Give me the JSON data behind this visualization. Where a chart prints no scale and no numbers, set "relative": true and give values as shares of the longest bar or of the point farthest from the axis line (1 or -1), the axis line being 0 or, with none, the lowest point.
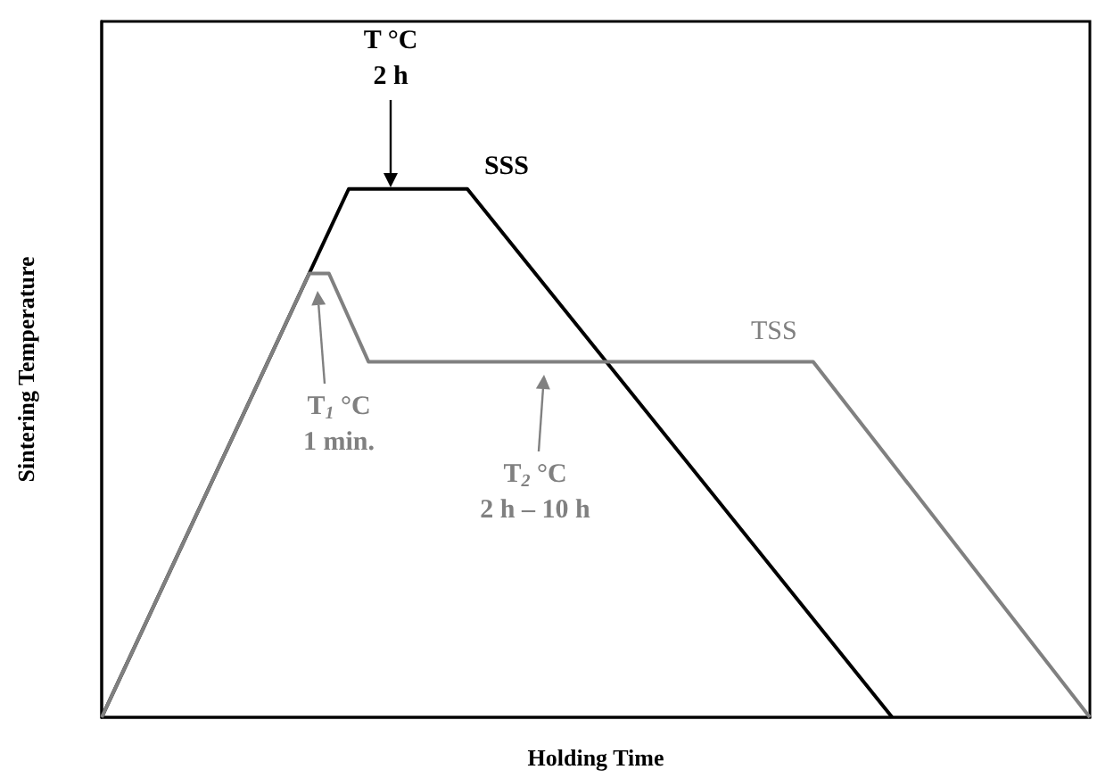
{
  "chart_data": {
    "type": "line",
    "relative": true,
    "xlabel": "Holding Time",
    "ylabel": "Sintering Temperature",
    "marker": "none",
    "line_style": "solid",
    "categories": [
      null,
      null,
      null,
      null,
      null,
      null,
      null,
      null,
      null,
      null,
      null,
      null,
      null,
      null,
      null,
      null,
      null,
      null,
      null,
      null,
      null,
      null,
      null,
      null,
      null,
      null,
      null,
      null,
      null,
      null,
      null,
      null,
      null,
      null,
      null,
      null,
      null,
      null,
      null,
      null,
      null,
      null,
      null,
      null,
      null,
      null,
      null,
      null,
      null,
      null,
      null,
      null,
      null,
      null,
      null,
      null,
      null,
      null,
      null,
      null,
      null,
      null,
      null,
      null,
      null,
      null,
      null,
      null,
      null,
      null,
      null,
      null,
      null,
      null,
      null,
      null,
      null,
      null,
      null,
      null,
      null,
      null,
      null,
      null,
      null,
      null,
      null,
      null,
      null,
      null,
      null,
      null,
      null,
      null,
      null,
      null,
      null,
      null,
      null,
      null,
      null
    ],
    "series": [
      {
        "name": "SSS",
        "color": "#000000",
        "values": [
          0,
          null,
          null,
          null,
          null,
          null,
          null,
          null,
          null,
          null,
          null,
          null,
          null,
          null,
          null,
          null,
          null,
          null,
          null,
          null,
          null,
          null,
          null,
          null,
          null,
          1,
          null,
          null,
          null,
          null,
          null,
          null,
          null,
          null,
          null,
          null,
          null,
          1,
          null,
          null,
          null,
          null,
          null,
          null,
          null,
          null,
          null,
          null,
          null,
          null,
          null,
          null,
          null,
          null,
          null,
          null,
          null,
          null,
          null,
          null,
          null,
          null,
          null,
          null,
          null,
          null,
          null,
          null,
          null,
          null,
          null,
          null,
          null,
          null,
          null,
          null,
          null,
          null,
          null,
          null,
          0,
          null,
          null,
          null,
          null,
          null,
          null,
          null,
          null,
          null,
          null,
          null,
          null,
          null,
          null,
          null,
          null,
          null,
          null,
          null,
          null
        ]
      },
      {
        "name": "TSS",
        "color": "#808080",
        "values": [
          0,
          null,
          null,
          null,
          null,
          null,
          null,
          null,
          null,
          null,
          null,
          null,
          null,
          null,
          null,
          null,
          null,
          null,
          null,
          null,
          null,
          0.84,
          null,
          0.84,
          null,
          null,
          null,
          0.673,
          null,
          null,
          null,
          null,
          null,
          null,
          null,
          null,
          null,
          null,
          null,
          null,
          null,
          null,
          null,
          null,
          null,
          null,
          null,
          null,
          null,
          null,
          null,
          null,
          null,
          null,
          null,
          null,
          null,
          null,
          null,
          null,
          null,
          null,
          null,
          null,
          null,
          null,
          null,
          null,
          null,
          null,
          null,
          null,
          0.673,
          null,
          null,
          null,
          null,
          null,
          null,
          null,
          null,
          null,
          null,
          null,
          null,
          null,
          null,
          null,
          null,
          null,
          null,
          null,
          null,
          null,
          null,
          null,
          null,
          null,
          null,
          null,
          0
        ]
      }
    ],
    "annotations": [
      "T °C\n2 h",
      "T$_{1}$ °C\n1 min.",
      "T$_{2}$ °C\n2 h – 10 h"
    ]
  }
}
